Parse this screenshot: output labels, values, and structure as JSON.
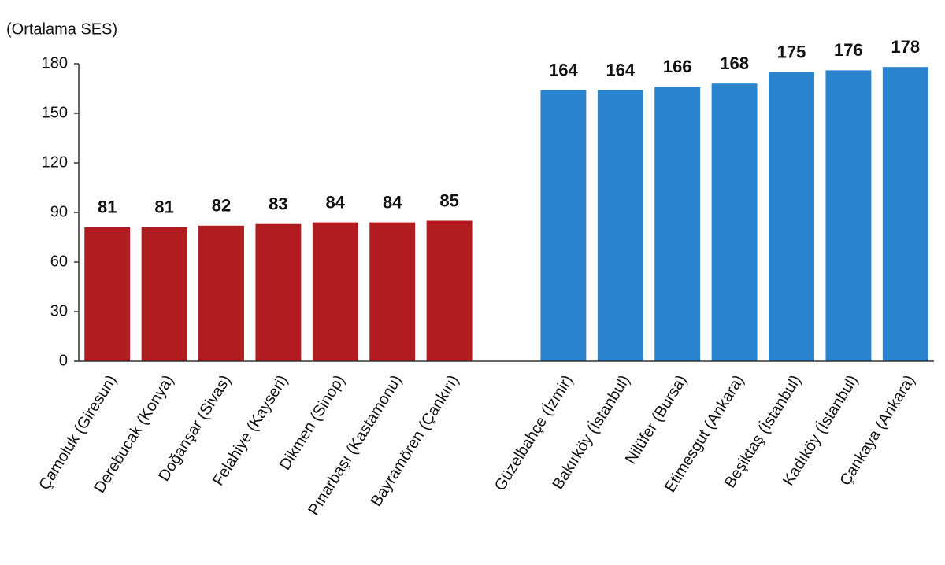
{
  "chart_data": {
    "type": "bar",
    "y_axis_label": "(Ortalama SES)",
    "categories": [
      "Çamoluk (Giresun)",
      "Derebucak (Konya)",
      "Doğanşar (Sivas)",
      "Felahiye (Kayseri)",
      "Dikmen (Sinop)",
      "Pınarbaşı (Kastamonu)",
      "Bayramören (Çankırı)",
      null,
      "Güzelbahçe (İzmir)",
      "Bakırköy (İstanbul)",
      "Nilüfer (Bursa)",
      "Etimesgut (Ankara)",
      "Beşiktaş (İstanbul)",
      "Kadıköy (İstanbul)",
      "Çankaya (Ankara)"
    ],
    "values": [
      81,
      81,
      82,
      83,
      84,
      84,
      85,
      null,
      164,
      164,
      166,
      168,
      175,
      176,
      178
    ],
    "colors": [
      "#b01c1f",
      "#b01c1f",
      "#b01c1f",
      "#b01c1f",
      "#b01c1f",
      "#b01c1f",
      "#b01c1f",
      null,
      "#2a83cc",
      "#2a83cc",
      "#2a83cc",
      "#2a83cc",
      "#2a83cc",
      "#2a83cc",
      "#2a83cc"
    ],
    "ylim": [
      0,
      180
    ],
    "yticks": [
      0,
      30,
      60,
      90,
      120,
      150,
      180
    ],
    "grid": false
  }
}
